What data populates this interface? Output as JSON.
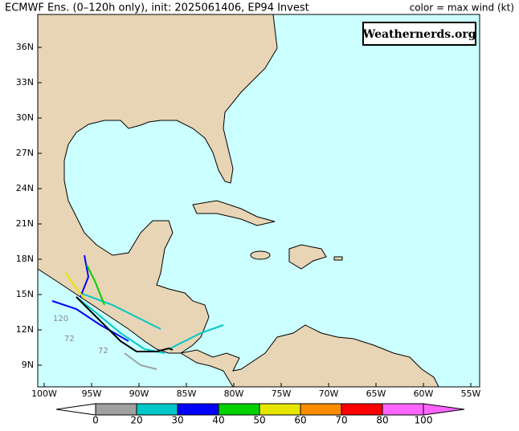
{
  "header": {
    "title": "ECMWF Ens. (0–120h only), init: 2025061406, EP94 Invest",
    "legend_note": "color = max wind (kt)"
  },
  "watermark": "Weathernerds.org",
  "latitude_labels": [
    "36N",
    "33N",
    "30N",
    "27N",
    "24N",
    "21N",
    "18N",
    "15N",
    "12N",
    "9N"
  ],
  "longitude_labels": [
    "100W",
    "95W",
    "90W",
    "85W",
    "80W",
    "75W",
    "70W",
    "65W",
    "60W",
    "55W"
  ],
  "track_labels": [
    "120",
    "72",
    "72"
  ],
  "colorbar": {
    "labels": [
      0,
      20,
      30,
      40,
      50,
      60,
      70,
      80,
      100
    ],
    "colors": [
      "#ffffff",
      "#a0a0a0",
      "#00c8c8",
      "#0000ff",
      "#00d200",
      "#e6e600",
      "#ff8c00",
      "#ff0000",
      "#ff64ff",
      "#ff64ff"
    ]
  }
}
